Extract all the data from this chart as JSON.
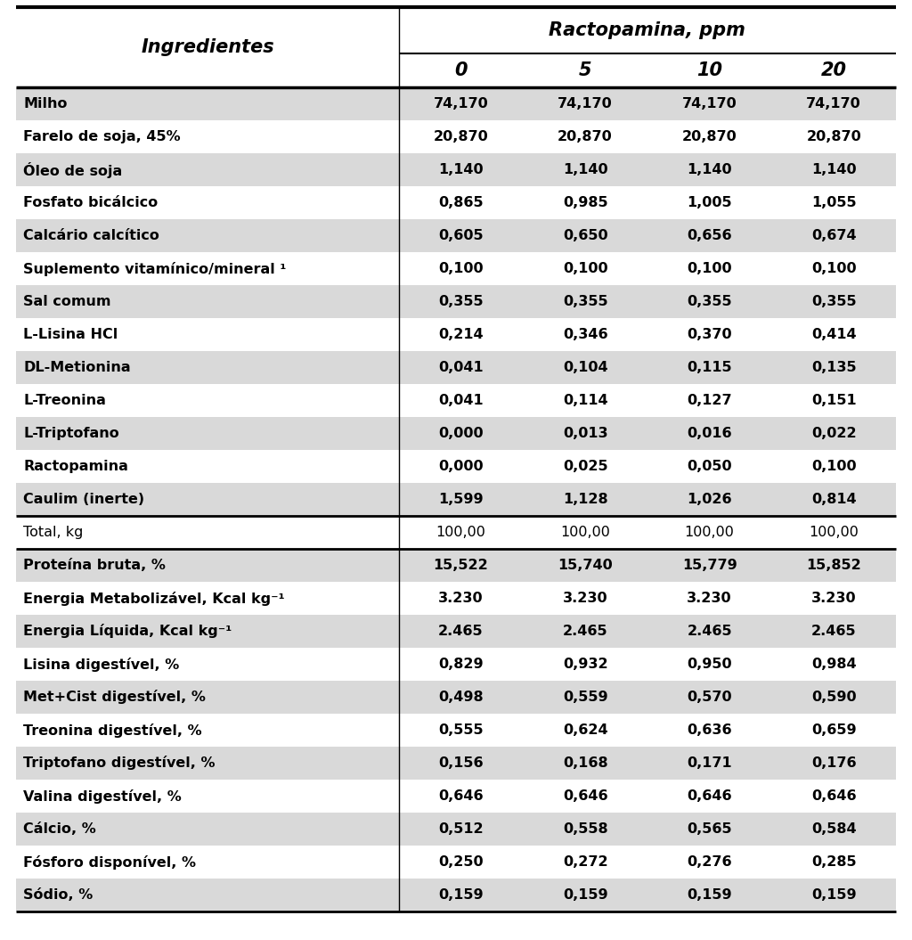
{
  "header_main": "Ractopamina, ppm",
  "header_col0": "Ingredientes",
  "header_cols": [
    "0",
    "5",
    "10",
    "20"
  ],
  "rows": [
    [
      "Milho",
      "74,170",
      "74,170",
      "74,170",
      "74,170"
    ],
    [
      "Farelo de soja, 45%",
      "20,870",
      "20,870",
      "20,870",
      "20,870"
    ],
    [
      "Óleo de soja",
      "1,140",
      "1,140",
      "1,140",
      "1,140"
    ],
    [
      "Fosfato bicálcico",
      "0,865",
      "0,985",
      "1,005",
      "1,055"
    ],
    [
      "Calcário calcítico",
      "0,605",
      "0,650",
      "0,656",
      "0,674"
    ],
    [
      "Suplemento vitamínico/mineral ¹",
      "0,100",
      "0,100",
      "0,100",
      "0,100"
    ],
    [
      "Sal comum",
      "0,355",
      "0,355",
      "0,355",
      "0,355"
    ],
    [
      "L-Lisina HCl",
      "0,214",
      "0,346",
      "0,370",
      "0,414"
    ],
    [
      "DL-Metionina",
      "0,041",
      "0,104",
      "0,115",
      "0,135"
    ],
    [
      "L-Treonina",
      "0,041",
      "0,114",
      "0,127",
      "0,151"
    ],
    [
      "L-Triptofano",
      "0,000",
      "0,013",
      "0,016",
      "0,022"
    ],
    [
      "Ractopamina",
      "0,000",
      "0,025",
      "0,050",
      "0,100"
    ],
    [
      "Caulim (inerte)",
      "1,599",
      "1,128",
      "1,026",
      "0,814"
    ]
  ],
  "row_bg": [
    "#d9d9d9",
    "#ffffff",
    "#d9d9d9",
    "#ffffff",
    "#d9d9d9",
    "#ffffff",
    "#d9d9d9",
    "#ffffff",
    "#d9d9d9",
    "#ffffff",
    "#d9d9d9",
    "#ffffff",
    "#d9d9d9"
  ],
  "total_row": [
    "Total, kg",
    "100,00",
    "100,00",
    "100,00",
    "100,00"
  ],
  "total_bg": "#ffffff",
  "nutritional_rows": [
    [
      "Proteína bruta, %",
      "15,522",
      "15,740",
      "15,779",
      "15,852"
    ],
    [
      "Energia Metabolizável, Kcal kg⁻¹",
      "3.230",
      "3.230",
      "3.230",
      "3.230"
    ],
    [
      "Energia Líquida, Kcal kg⁻¹",
      "2.465",
      "2.465",
      "2.465",
      "2.465"
    ],
    [
      "Lisina digestível, %",
      "0,829",
      "0,932",
      "0,950",
      "0,984"
    ],
    [
      "Met+Cist digestível, %",
      "0,498",
      "0,559",
      "0,570",
      "0,590"
    ],
    [
      "Treonina digestível, %",
      "0,555",
      "0,624",
      "0,636",
      "0,659"
    ],
    [
      "Triptofano digestível, %",
      "0,156",
      "0,168",
      "0,171",
      "0,176"
    ],
    [
      "Valina digestível, %",
      "0,646",
      "0,646",
      "0,646",
      "0,646"
    ],
    [
      "Cálcio, %",
      "0,512",
      "0,558",
      "0,565",
      "0,584"
    ],
    [
      "Fósforo disponível, %",
      "0,250",
      "0,272",
      "0,276",
      "0,285"
    ],
    [
      "Sódio, %",
      "0,159",
      "0,159",
      "0,159",
      "0,159"
    ]
  ],
  "nutr_bg": [
    "#d9d9d9",
    "#ffffff",
    "#d9d9d9",
    "#ffffff",
    "#d9d9d9",
    "#ffffff",
    "#d9d9d9",
    "#ffffff",
    "#d9d9d9",
    "#ffffff",
    "#d9d9d9"
  ],
  "bg_light": "#d9d9d9",
  "bg_white": "#ffffff",
  "line_color": "#000000",
  "text_color": "#000000",
  "fig_width": 10.24,
  "fig_height": 10.55,
  "dpi": 100
}
